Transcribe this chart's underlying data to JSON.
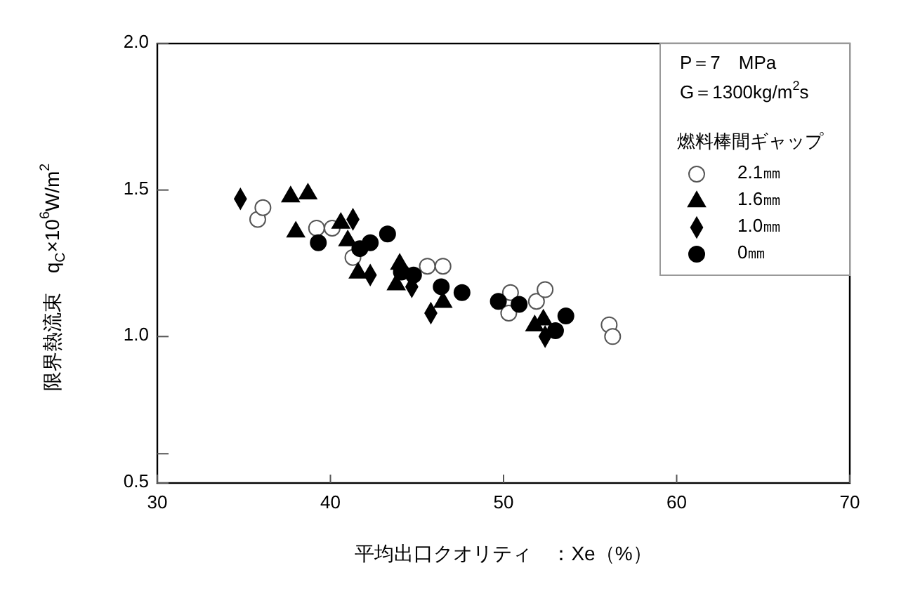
{
  "chart_data": {
    "type": "scatter",
    "xlabel": "平均出口クオリティ　：Xe（%）",
    "ylabel": "限界熱流束　q$_{C}$×10$^{6}$W/m$^{2}$",
    "annotations": [
      "P＝7　MPa",
      "G＝1300kg/m$^{2}$s"
    ],
    "legend_title": "燃料棒間ギャップ",
    "legend": "top right",
    "grid": false,
    "xlim": [
      30,
      70
    ],
    "xticks": [
      30,
      40,
      50,
      60,
      70
    ],
    "ylim": [
      0.5,
      2.0
    ],
    "yticks": [
      {
        "value": 0.5,
        "label": "0.5"
      },
      {
        "value": 0.6,
        "label": null
      },
      {
        "value": 1.0,
        "label": "1.0"
      },
      {
        "value": 1.5,
        "label": "1.5"
      },
      {
        "value": 2.0,
        "label": "2.0"
      }
    ],
    "series": [
      {
        "name": "2.1㎜",
        "color": "#ffffff",
        "marker": "circle",
        "x": [
          35.8,
          36.1,
          39.2,
          40.1,
          41.3,
          45.6,
          46.5,
          50.4,
          50.3,
          51.9,
          52.4,
          56.1,
          56.3
        ],
        "values": [
          1.4,
          1.44,
          1.37,
          1.37,
          1.27,
          1.24,
          1.24,
          1.15,
          1.08,
          1.12,
          1.16,
          1.04,
          1.0
        ]
      },
      {
        "name": "1.6㎜",
        "color": "#000000",
        "marker": "triangle",
        "x": [
          37.7,
          38.7,
          38.0,
          40.6,
          41.0,
          41.6,
          44.0,
          43.8,
          46.5,
          51.8,
          52.3
        ],
        "values": [
          1.48,
          1.49,
          1.36,
          1.39,
          1.33,
          1.22,
          1.25,
          1.18,
          1.12,
          1.04,
          1.06
        ]
      },
      {
        "name": "1.0㎜",
        "color": "#000000",
        "marker": "diamond",
        "x": [
          34.8,
          41.3,
          42.3,
          44.7,
          45.8,
          52.4
        ],
        "values": [
          1.47,
          1.4,
          1.21,
          1.17,
          1.08,
          1.0
        ]
      },
      {
        "name": "0㎜",
        "color": "#000000",
        "marker": "circle",
        "x": [
          39.3,
          42.3,
          43.3,
          41.7,
          44.8,
          44.1,
          46.4,
          47.6,
          49.7,
          50.9,
          53.6,
          53.0
        ],
        "values": [
          1.32,
          1.32,
          1.35,
          1.3,
          1.21,
          1.22,
          1.17,
          1.15,
          1.12,
          1.11,
          1.07,
          1.02
        ]
      }
    ]
  }
}
